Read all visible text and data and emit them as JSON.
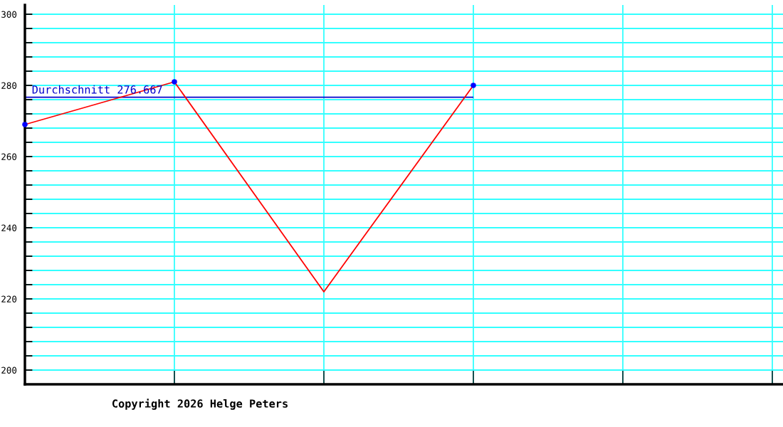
{
  "chart_data": {
    "type": "line",
    "categories": [
      null,
      null,
      null,
      null,
      null,
      null
    ],
    "series": [
      {
        "color": "#ff0000",
        "values": [
          269,
          281,
          222,
          280,
          null,
          null
        ]
      },
      {
        "type": "scatter",
        "color": "#0000ff",
        "marker": "circle",
        "values": [
          269,
          281,
          null,
          280,
          null,
          null
        ]
      }
    ],
    "ylim": [
      196,
      302.6
    ],
    "yticks": [
      200,
      {
        "value": 204,
        "label": null
      },
      {
        "value": 208,
        "label": null
      },
      {
        "value": 212,
        "label": null
      },
      {
        "value": 216,
        "label": null
      },
      220,
      {
        "value": 224,
        "label": null
      },
      {
        "value": 228,
        "label": null
      },
      {
        "value": 232,
        "label": null
      },
      {
        "value": 236,
        "label": null
      },
      240,
      {
        "value": 244,
        "label": null
      },
      {
        "value": 248,
        "label": null
      },
      {
        "value": 252,
        "label": null
      },
      {
        "value": 256,
        "label": null
      },
      260,
      {
        "value": 264,
        "label": null
      },
      {
        "value": 268,
        "label": null
      },
      {
        "value": 272,
        "label": null
      },
      {
        "value": 276,
        "label": null
      },
      280,
      {
        "value": 284,
        "label": null
      },
      {
        "value": 288,
        "label": null
      },
      {
        "value": 292,
        "label": null
      },
      {
        "value": 296,
        "label": null
      },
      300
    ],
    "grid": true,
    "ref_lines": [
      {
        "axis": "y",
        "value": 276.667,
        "label": "Durchschnitt 276.667",
        "color": "#0000cc"
      }
    ],
    "annotations": [
      "Copyright 2026 Helge Peters"
    ]
  }
}
